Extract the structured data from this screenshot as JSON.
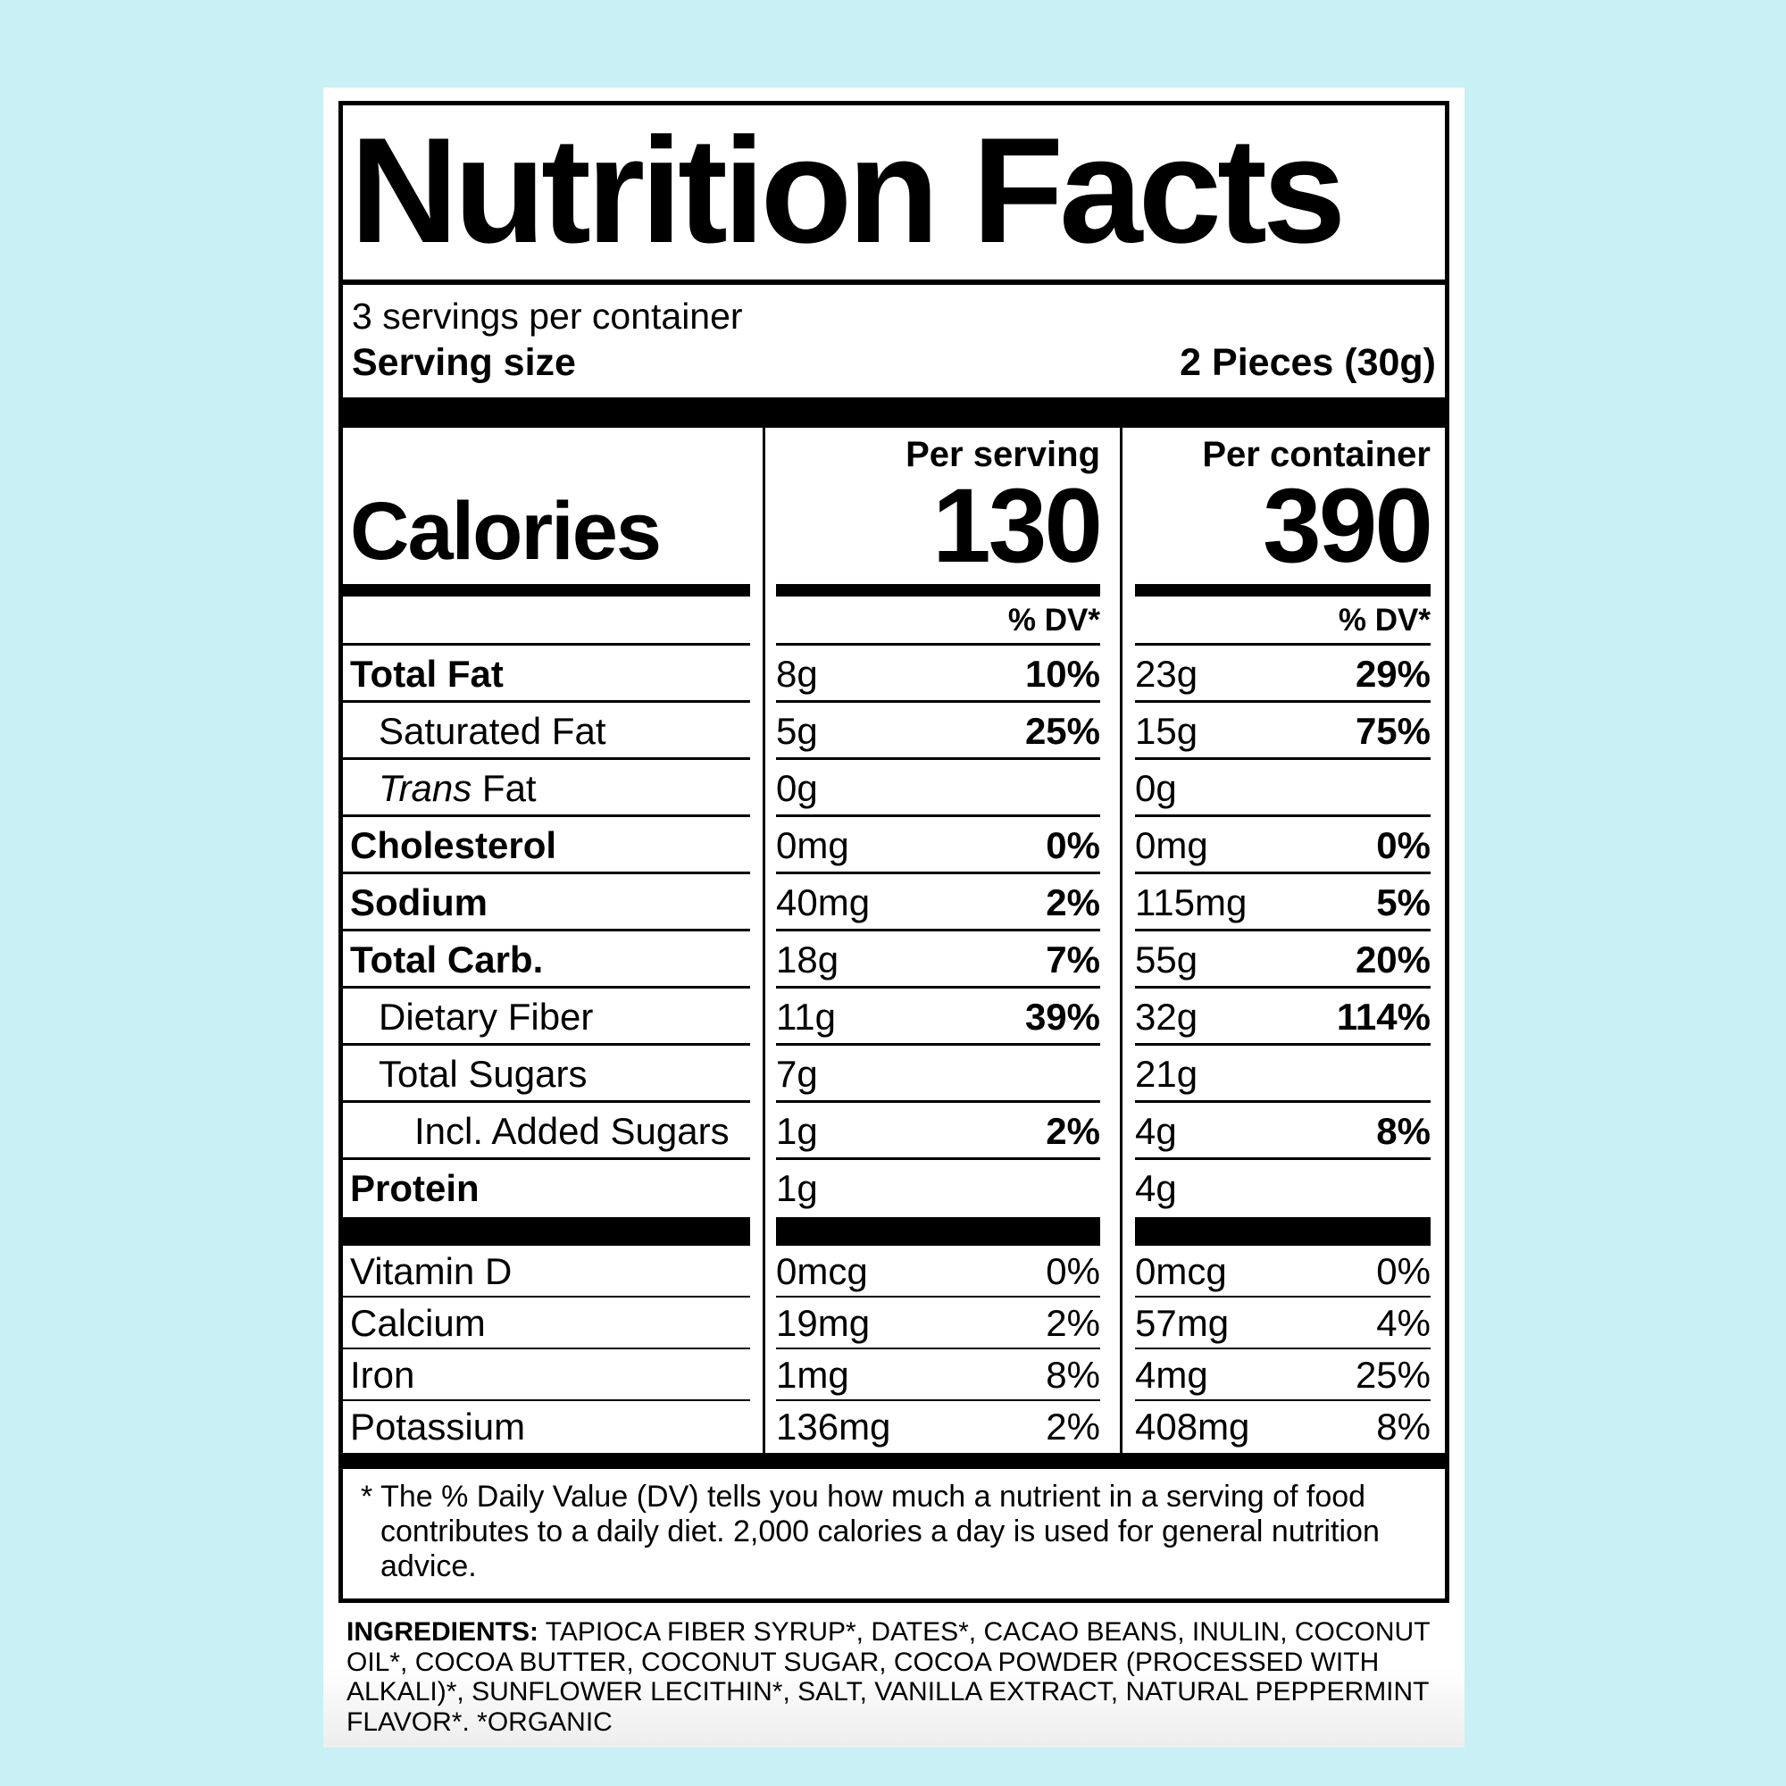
{
  "page": {
    "background_color": "#c9f0f4",
    "panel_color": "#ffffff",
    "ink_color": "#000000"
  },
  "label": {
    "title": "Nutrition Facts",
    "servings_per_container": "3 servings per container",
    "serving_size": {
      "label": "Serving size",
      "value": "2 Pieces (30g)"
    },
    "column_headers": {
      "per_serving": "Per serving",
      "per_container": "Per container"
    },
    "calories": {
      "label": "Calories",
      "per_serving": "130",
      "per_container": "390"
    },
    "dv_header": "% DV*",
    "nutrient_rows": [
      {
        "name": "Total Fat",
        "bold": true,
        "indent": 0,
        "per_serving": {
          "amount": "8g",
          "dv": "10%"
        },
        "per_container": {
          "amount": "23g",
          "dv": "29%"
        }
      },
      {
        "name": "Saturated Fat",
        "bold": false,
        "indent": 1,
        "per_serving": {
          "amount": "5g",
          "dv": "25%"
        },
        "per_container": {
          "amount": "15g",
          "dv": "75%"
        }
      },
      {
        "name_italic": "Trans",
        "name": " Fat",
        "bold": false,
        "indent": 1,
        "per_serving": {
          "amount": "0g",
          "dv": ""
        },
        "per_container": {
          "amount": "0g",
          "dv": ""
        }
      },
      {
        "name": "Cholesterol",
        "bold": true,
        "indent": 0,
        "per_serving": {
          "amount": "0mg",
          "dv": "0%"
        },
        "per_container": {
          "amount": "0mg",
          "dv": "0%"
        }
      },
      {
        "name": "Sodium",
        "bold": true,
        "indent": 0,
        "per_serving": {
          "amount": "40mg",
          "dv": "2%"
        },
        "per_container": {
          "amount": "115mg",
          "dv": "5%"
        }
      },
      {
        "name": "Total Carb.",
        "bold": true,
        "indent": 0,
        "per_serving": {
          "amount": "18g",
          "dv": "7%"
        },
        "per_container": {
          "amount": "55g",
          "dv": "20%"
        }
      },
      {
        "name": "Dietary Fiber",
        "bold": false,
        "indent": 1,
        "per_serving": {
          "amount": "11g",
          "dv": "39%"
        },
        "per_container": {
          "amount": "32g",
          "dv": "114%"
        }
      },
      {
        "name": "Total Sugars",
        "bold": false,
        "indent": 1,
        "per_serving": {
          "amount": "7g",
          "dv": ""
        },
        "per_container": {
          "amount": "21g",
          "dv": ""
        }
      },
      {
        "name": "Incl. Added Sugars",
        "bold": false,
        "indent": 2,
        "per_serving": {
          "amount": "1g",
          "dv": "2%"
        },
        "per_container": {
          "amount": "4g",
          "dv": "8%"
        }
      },
      {
        "name": "Protein",
        "bold": true,
        "indent": 0,
        "no_line": true,
        "per_serving": {
          "amount": "1g",
          "dv": ""
        },
        "per_container": {
          "amount": "4g",
          "dv": ""
        }
      }
    ],
    "micronutrient_rows": [
      {
        "name": "Vitamin D",
        "per_serving": {
          "amount": "0mcg",
          "dv": "0%"
        },
        "per_container": {
          "amount": "0mcg",
          "dv": "0%"
        }
      },
      {
        "name": "Calcium",
        "per_serving": {
          "amount": "19mg",
          "dv": "2%"
        },
        "per_container": {
          "amount": "57mg",
          "dv": "4%"
        }
      },
      {
        "name": "Iron",
        "per_serving": {
          "amount": "1mg",
          "dv": "8%"
        },
        "per_container": {
          "amount": "4mg",
          "dv": "25%"
        }
      },
      {
        "name": "Potassium",
        "no_line": true,
        "per_serving": {
          "amount": "136mg",
          "dv": "2%"
        },
        "per_container": {
          "amount": "408mg",
          "dv": "8%"
        }
      }
    ],
    "footnote": {
      "star": "*",
      "text": "The % Daily Value (DV) tells you how much a nutrient in a serving of food contributes to a daily diet. 2,000 calories a day is used for general nutrition advice."
    },
    "ingredients": {
      "label": "INGREDIENTS:",
      "text": " TAPIOCA FIBER SYRUP*, DATES*, CACAO BEANS, INULIN, COCONUT OIL*, COCOA BUTTER, COCONUT SUGAR, COCOA POWDER (PROCESSED WITH ALKALI)*, SUNFLOWER LECITHIN*, SALT, VANILLA EXTRACT, NATURAL PEPPERMINT FLAVOR*. *ORGANIC"
    }
  }
}
